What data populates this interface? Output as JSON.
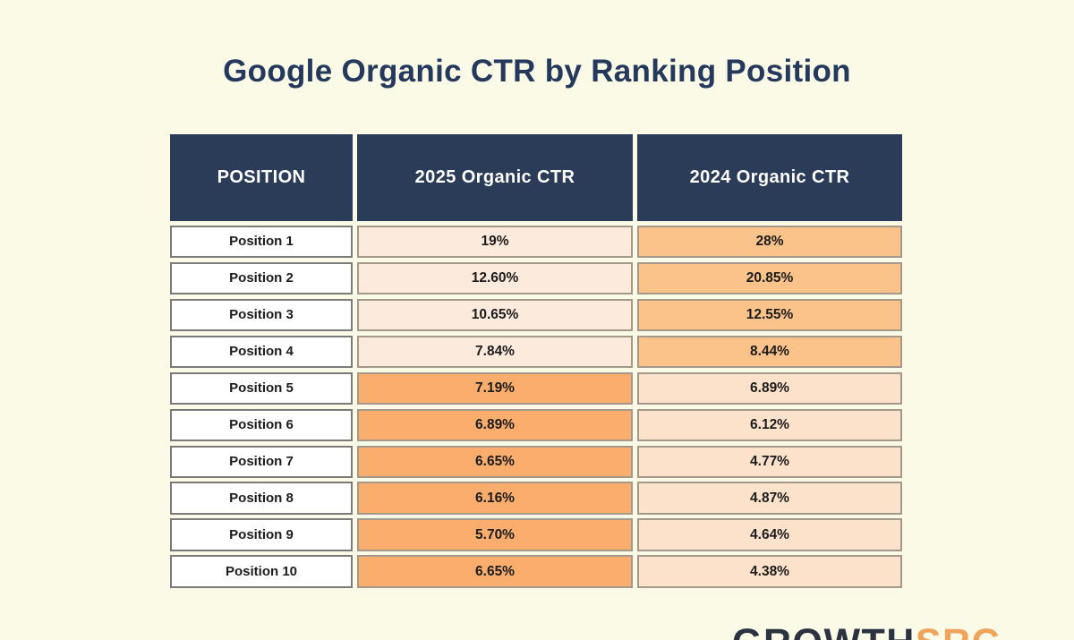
{
  "page": {
    "title": "Google Organic CTR by Ranking Position",
    "background_color": "#FBFAE7",
    "title_color": "#25395C"
  },
  "table": {
    "header": {
      "columns": [
        "POSITION",
        "2025 Organic CTR",
        "2024 Organic CTR"
      ],
      "bg_color": "#2A3C58",
      "text_color": "#FFFFFF"
    },
    "rows": [
      {
        "position": "Position 1",
        "ctr_2025": "19%",
        "ctr_2024": "28%",
        "band": "top"
      },
      {
        "position": "Position 2",
        "ctr_2025": "12.60%",
        "ctr_2024": "20.85%",
        "band": "top"
      },
      {
        "position": "Position 3",
        "ctr_2025": "10.65%",
        "ctr_2024": "12.55%",
        "band": "top"
      },
      {
        "position": "Position 4",
        "ctr_2025": "7.84%",
        "ctr_2024": "8.44%",
        "band": "top"
      },
      {
        "position": "Position 5",
        "ctr_2025": "7.19%",
        "ctr_2024": "6.89%",
        "band": "bottom"
      },
      {
        "position": "Position 6",
        "ctr_2025": "6.89%",
        "ctr_2024": "6.12%",
        "band": "bottom"
      },
      {
        "position": "Position 7",
        "ctr_2025": "6.65%",
        "ctr_2024": "4.77%",
        "band": "bottom"
      },
      {
        "position": "Position 8",
        "ctr_2025": "6.16%",
        "ctr_2024": "4.87%",
        "band": "bottom"
      },
      {
        "position": "Position 9",
        "ctr_2025": "5.70%",
        "ctr_2024": "4.64%",
        "band": "bottom"
      },
      {
        "position": "Position 10",
        "ctr_2025": "6.65%",
        "ctr_2024": "4.38%",
        "band": "bottom"
      }
    ],
    "cell_colors": {
      "peach_light_2025_rows1_4": "#FCEADD",
      "orange_2024_rows1_4": "#FBC28A",
      "orange_2025_rows5_10": "#FAAD6D",
      "peach_2024_rows5_10": "#FCE2CB",
      "position_cell_bg": "#FFFFFF"
    }
  },
  "logo": {
    "dark_text": "GROWTH",
    "accent_text": "SRC",
    "dark_color": "#2B3240",
    "accent_color": "#EFA45B"
  },
  "chart_data": {
    "type": "table",
    "title": "Google Organic CTR by Ranking Position",
    "columns": [
      "POSITION",
      "2025 Organic CTR",
      "2024 Organic CTR"
    ],
    "rows": [
      [
        "Position 1",
        "19%",
        "28%"
      ],
      [
        "Position 2",
        "12.60%",
        "20.85%"
      ],
      [
        "Position 3",
        "10.65%",
        "12.55%"
      ],
      [
        "Position 4",
        "7.84%",
        "8.44%"
      ],
      [
        "Position 5",
        "7.19%",
        "6.89%"
      ],
      [
        "Position 6",
        "6.89%",
        "6.12%"
      ],
      [
        "Position 7",
        "6.65%",
        "4.77%"
      ],
      [
        "Position 8",
        "6.16%",
        "4.87%"
      ],
      [
        "Position 9",
        "5.70%",
        "4.64%"
      ],
      [
        "Position 10",
        "6.65%",
        "4.38%"
      ]
    ],
    "series": [
      {
        "name": "2025 Organic CTR",
        "values": [
          19,
          12.6,
          10.65,
          7.84,
          7.19,
          6.89,
          6.65,
          6.16,
          5.7,
          6.65
        ]
      },
      {
        "name": "2024 Organic CTR",
        "values": [
          28,
          20.85,
          12.55,
          8.44,
          6.89,
          6.12,
          4.77,
          4.87,
          4.64,
          4.38
        ]
      }
    ],
    "categories": [
      "Position 1",
      "Position 2",
      "Position 3",
      "Position 4",
      "Position 5",
      "Position 6",
      "Position 7",
      "Position 8",
      "Position 9",
      "Position 10"
    ],
    "highlight_note": "2024 column highlighted orange for positions 1-4; 2025 column highlighted orange for positions 5-10"
  }
}
